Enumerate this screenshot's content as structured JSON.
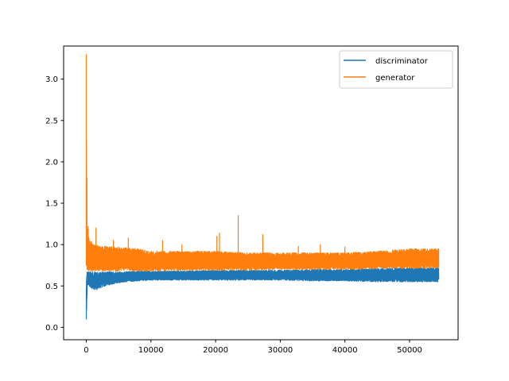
{
  "chart_data": {
    "type": "line",
    "title": "",
    "xlabel": "",
    "ylabel": "",
    "xlim": [
      -3500,
      57500
    ],
    "ylim": [
      -0.15,
      3.4
    ],
    "xticks": [
      0,
      10000,
      20000,
      30000,
      40000,
      50000
    ],
    "xtick_labels": [
      "0",
      "10000",
      "20000",
      "30000",
      "40000",
      "50000"
    ],
    "yticks": [
      0.0,
      0.5,
      1.0,
      1.5,
      2.0,
      2.5,
      3.0
    ],
    "ytick_labels": [
      "0.0",
      "0.5",
      "1.0",
      "1.5",
      "2.0",
      "2.5",
      "3.0"
    ],
    "grid": false,
    "legend_position": "upper right",
    "series": [
      {
        "name": "discriminator",
        "color": "#1f77b4",
        "description_points": {
          "x": [
            0,
            50,
            100,
            150,
            200,
            400,
            700,
            1000,
            1500,
            2000,
            3000,
            5000,
            8000,
            10000,
            15000,
            20000,
            25000,
            30000,
            35000,
            40000,
            45000,
            50000,
            54500
          ],
          "lower": [
            0.05,
            0.12,
            0.3,
            0.45,
            0.5,
            0.5,
            0.48,
            0.46,
            0.45,
            0.47,
            0.5,
            0.54,
            0.56,
            0.57,
            0.57,
            0.57,
            0.57,
            0.57,
            0.56,
            0.56,
            0.55,
            0.55,
            0.55
          ],
          "upper": [
            0.7,
            0.75,
            0.7,
            0.68,
            0.68,
            0.67,
            0.67,
            0.67,
            0.67,
            0.67,
            0.67,
            0.67,
            0.68,
            0.68,
            0.68,
            0.69,
            0.69,
            0.69,
            0.7,
            0.7,
            0.71,
            0.72,
            0.72
          ]
        }
      },
      {
        "name": "generator",
        "color": "#ff7f0e",
        "description_points": {
          "x": [
            0,
            50,
            100,
            150,
            200,
            400,
            700,
            1000,
            1500,
            2000,
            3000,
            5000,
            8000,
            10000,
            15000,
            20000,
            25000,
            30000,
            35000,
            40000,
            45000,
            50000,
            54500
          ],
          "lower": [
            0.7,
            0.72,
            0.7,
            0.68,
            0.68,
            0.68,
            0.68,
            0.68,
            0.68,
            0.68,
            0.68,
            0.68,
            0.68,
            0.68,
            0.69,
            0.69,
            0.69,
            0.7,
            0.7,
            0.7,
            0.71,
            0.71,
            0.72
          ],
          "upper": [
            3.3,
            1.8,
            1.25,
            1.2,
            1.15,
            1.1,
            1.05,
            1.0,
            1.0,
            0.98,
            0.98,
            0.97,
            0.95,
            0.92,
            0.92,
            0.92,
            0.9,
            0.9,
            0.9,
            0.9,
            0.92,
            0.95,
            0.95
          ]
        },
        "spikes": [
          {
            "x": 0,
            "y": 3.3
          },
          {
            "x": 100,
            "y": 1.8
          },
          {
            "x": 300,
            "y": 1.22
          },
          {
            "x": 1500,
            "y": 1.2
          },
          {
            "x": 4200,
            "y": 1.05
          },
          {
            "x": 6500,
            "y": 1.08
          },
          {
            "x": 11800,
            "y": 1.05
          },
          {
            "x": 14800,
            "y": 1.0
          },
          {
            "x": 20200,
            "y": 1.1
          },
          {
            "x": 20600,
            "y": 1.14
          },
          {
            "x": 23500,
            "y": 1.35
          },
          {
            "x": 27300,
            "y": 1.12
          },
          {
            "x": 32800,
            "y": 0.98
          },
          {
            "x": 36200,
            "y": 1.0
          },
          {
            "x": 40000,
            "y": 0.97
          }
        ]
      }
    ]
  }
}
